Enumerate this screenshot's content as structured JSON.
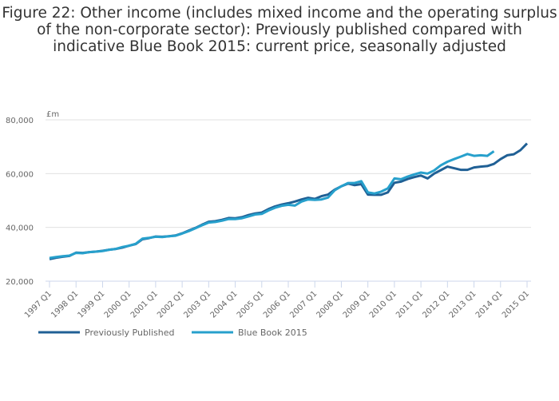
{
  "chart_data": {
    "type": "line",
    "title": "Figure 22: Other income (includes mixed income and the operating surplus of the non-corporate sector): Previously published compared with indicative Blue Book 2015: current price, seasonally adjusted",
    "ylabel": "£m",
    "xlabel": "",
    "ylim": [
      20000,
      80000
    ],
    "yticks": [
      20000,
      40000,
      60000,
      80000
    ],
    "ytick_labels": [
      "20,000",
      "40,000",
      "60,000",
      "80,000"
    ],
    "x_start": "1997 Q1",
    "xtick_labels": [
      "1997 Q1",
      "1998 Q1",
      "1999 Q1",
      "2000 Q1",
      "2001 Q1",
      "2002 Q1",
      "2003 Q1",
      "2004 Q1",
      "2005 Q1",
      "2006 Q1",
      "2007 Q1",
      "2008 Q1",
      "2009 Q1",
      "2010 Q1",
      "2011 Q1",
      "2012 Q1",
      "2013 Q1",
      "2014 Q1",
      "2015 Q1"
    ],
    "grid": true,
    "legend_position": "bottom-left",
    "series": [
      {
        "name": "Previously Published",
        "color": "#206095",
        "values": [
          28200,
          28700,
          29100,
          29400,
          30600,
          30500,
          30800,
          31000,
          31300,
          31700,
          32000,
          32500,
          33200,
          33800,
          35600,
          36000,
          36600,
          36500,
          36700,
          37000,
          37800,
          38800,
          39800,
          41000,
          42100,
          42300,
          42800,
          43500,
          43400,
          43800,
          44600,
          45200,
          45500,
          46800,
          47800,
          48500,
          49000,
          49600,
          50400,
          51000,
          50600,
          51600,
          52200,
          54000,
          55300,
          56300,
          55700,
          56100,
          52200,
          52100,
          52100,
          53000,
          56600,
          57000,
          58000,
          58700,
          59300,
          58200,
          60000,
          61300,
          62600,
          62000,
          61400,
          61400,
          62300,
          62600,
          62800,
          63600,
          65400,
          66800,
          67200,
          68700,
          71200
        ]
      },
      {
        "name": "Blue Book 2015",
        "color": "#27a0cc",
        "values": [
          28600,
          29000,
          29300,
          29500,
          30500,
          30400,
          30800,
          31000,
          31200,
          31700,
          32000,
          32700,
          33200,
          33900,
          35800,
          36100,
          36500,
          36400,
          36700,
          36900,
          37700,
          38600,
          39700,
          40800,
          41800,
          42000,
          42500,
          43100,
          43100,
          43400,
          44100,
          44800,
          45000,
          46300,
          47300,
          48000,
          48400,
          48100,
          49600,
          50400,
          50200,
          50400,
          51100,
          53800,
          55300,
          56500,
          56500,
          57200,
          53000,
          52600,
          53300,
          54500,
          58200,
          57900,
          58900,
          59700,
          60400,
          60000,
          61200,
          63100,
          64400,
          65400,
          66300,
          67300,
          66600,
          66800,
          66600,
          68300
        ]
      }
    ]
  }
}
